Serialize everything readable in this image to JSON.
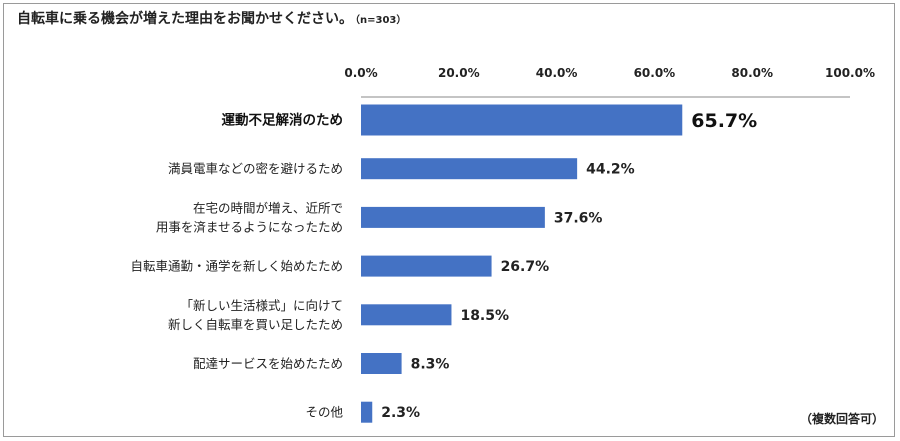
{
  "chart_data": {
    "type": "bar",
    "orientation": "horizontal",
    "title": "自転車に乗る機会が増えた理由をお聞かせください。",
    "subtitle": "（n=303）",
    "footnote": "（複数回答可）",
    "xlim": [
      0,
      100
    ],
    "x_ticks": [
      "0.0%",
      "20.0%",
      "40.0%",
      "60.0%",
      "80.0%",
      "100.0%"
    ],
    "x_tick_values": [
      0,
      20,
      40,
      60,
      80,
      100
    ],
    "bar_color": "#4472c4",
    "categories": [
      [
        "運動不足解消のため"
      ],
      [
        "満員電車などの密を避けるため"
      ],
      [
        "在宅の時間が増え、近所で",
        "用事を済ませるようになったため"
      ],
      [
        "自転車通勤・通学を新しく始めたため"
      ],
      [
        "「新しい生活様式」に向けて",
        "新しく自転車を買い足したため"
      ],
      [
        "配達サービスを始めたため"
      ],
      [
        "その他"
      ]
    ],
    "values": [
      65.7,
      44.2,
      37.6,
      26.7,
      18.5,
      8.3,
      2.3
    ],
    "value_labels": [
      "65.7%",
      "44.2%",
      "37.6%",
      "26.7%",
      "18.5%",
      "8.3%",
      "2.3%"
    ],
    "highlight_index": 0
  }
}
